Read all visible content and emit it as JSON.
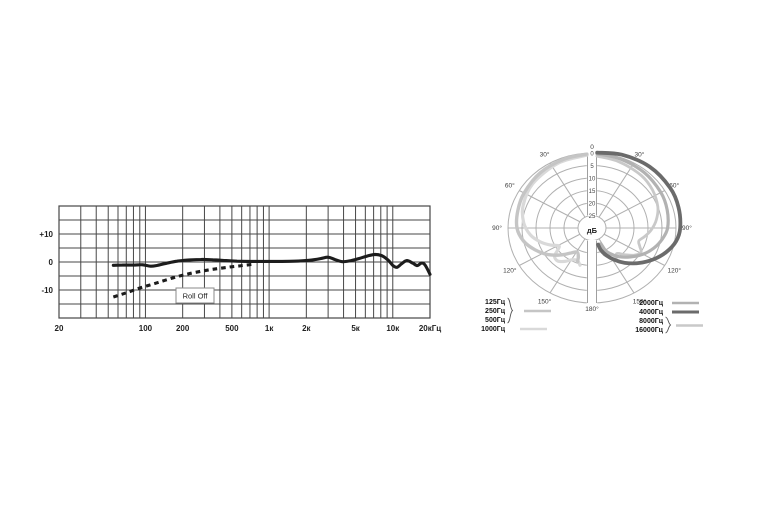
{
  "figure": {
    "background": "#ffffff",
    "colors": {
      "freq_grid": "#474747",
      "freq_curve": "#1c1c1c",
      "polar_grid": "#b0b0b0",
      "channel_line": "#9f9f9f",
      "label_text": "#222222",
      "annotation_border": "#8a8a8a"
    }
  },
  "chart_data": [
    {
      "type": "line",
      "name": "frequency_response",
      "x_scale": "log",
      "x_range": [
        20,
        20000
      ],
      "y_range": [
        -20,
        20
      ],
      "y_grid_step_db": 5,
      "grid": true,
      "x_tick_labels": [
        {
          "value": 20,
          "label": "20"
        },
        {
          "value": 100,
          "label": "100"
        },
        {
          "value": 200,
          "label": "200"
        },
        {
          "value": 500,
          "label": "500"
        },
        {
          "value": 1000,
          "label": "1к"
        },
        {
          "value": 2000,
          "label": "2к"
        },
        {
          "value": 5000,
          "label": "5к"
        },
        {
          "value": 10000,
          "label": "10к"
        },
        {
          "value": 20000,
          "label": "20кГц"
        }
      ],
      "y_tick_labels": [
        {
          "value": 10,
          "label": "+10"
        },
        {
          "value": 0,
          "label": "0"
        },
        {
          "value": -10,
          "label": "-10"
        }
      ],
      "annotation": {
        "label": "Roll Off"
      },
      "series": [
        {
          "name": "main_response",
          "style": "solid",
          "color": "#1c1c1c",
          "width": 3.1,
          "points": [
            [
              55,
              -1.2
            ],
            [
              65,
              -1.1
            ],
            [
              80,
              -1.1
            ],
            [
              95,
              -1.0
            ],
            [
              110,
              -1.5
            ],
            [
              125,
              -1.2
            ],
            [
              150,
              -0.4
            ],
            [
              180,
              0.3
            ],
            [
              220,
              0.7
            ],
            [
              280,
              0.9
            ],
            [
              350,
              0.8
            ],
            [
              450,
              0.5
            ],
            [
              550,
              0.3
            ],
            [
              700,
              0.2
            ],
            [
              900,
              0.2
            ],
            [
              1200,
              0.2
            ],
            [
              1600,
              0.3
            ],
            [
              2100,
              0.6
            ],
            [
              2600,
              1.2
            ],
            [
              3000,
              1.7
            ],
            [
              3400,
              0.9
            ],
            [
              3900,
              0.1
            ],
            [
              4600,
              0.5
            ],
            [
              5300,
              1.2
            ],
            [
              6200,
              2.1
            ],
            [
              7200,
              2.7
            ],
            [
              8200,
              2.2
            ],
            [
              9200,
              0.6
            ],
            [
              10000,
              -1.2
            ],
            [
              10800,
              -1.9
            ],
            [
              11800,
              -0.6
            ],
            [
              13000,
              0.5
            ],
            [
              14500,
              -0.4
            ],
            [
              15800,
              -1.3
            ],
            [
              17000,
              -0.4
            ],
            [
              18200,
              -1.0
            ],
            [
              20000,
              -4.4
            ]
          ]
        },
        {
          "name": "bass_roll_off",
          "style": "dashed",
          "color": "#1c1c1c",
          "width": 3.1,
          "points": [
            [
              55,
              -12.5
            ],
            [
              70,
              -11.0
            ],
            [
              90,
              -9.3
            ],
            [
              115,
              -7.9
            ],
            [
              145,
              -6.5
            ],
            [
              185,
              -5.1
            ],
            [
              235,
              -4.0
            ],
            [
              300,
              -3.1
            ],
            [
              380,
              -2.4
            ],
            [
              480,
              -1.8
            ],
            [
              600,
              -1.3
            ],
            [
              720,
              -0.9
            ]
          ]
        }
      ]
    },
    {
      "type": "polar",
      "name": "polar_pattern",
      "radial_unit": "дБ",
      "radial_ticks": [
        "0",
        "5",
        "10",
        "15",
        "20",
        "25"
      ],
      "radial_db_at_center": 30,
      "angle_labels": {
        "top": "0",
        "sides": [
          "30°",
          "60°",
          "90°",
          "120°",
          "150°"
        ],
        "bottom": "180°"
      },
      "series": [
        {
          "name": "1000Гц",
          "side": "left",
          "color": "#d9d9d9",
          "width": 3.2,
          "points": [
            [
              3.5,
              0.8
            ],
            [
              25,
              1.4
            ],
            [
              50,
              2.4
            ],
            [
              70,
              3.8
            ],
            [
              85,
              5.5
            ],
            [
              97,
              7.8
            ],
            [
              107,
              10.8
            ],
            [
              115,
              13.8
            ],
            [
              121,
              16.2
            ],
            [
              126,
              14.8
            ],
            [
              130,
              12.5
            ],
            [
              137,
              12.0
            ],
            [
              144,
              13.5
            ],
            [
              151,
              15.5
            ],
            [
              158,
              16.0
            ],
            [
              164,
              14.5
            ]
          ]
        },
        {
          "name": "125Гц/250Гц/500Гц",
          "side": "left",
          "color": "#c5c5c5",
          "width": 3.4,
          "points": [
            [
              3.5,
              0.4
            ],
            [
              20,
              0.7
            ],
            [
              40,
              1.2
            ],
            [
              60,
              2.0
            ],
            [
              75,
              2.6
            ],
            [
              90,
              3.2
            ],
            [
              102,
              5.0
            ],
            [
              113,
              7.8
            ],
            [
              124,
              11.0
            ],
            [
              134,
              14.5
            ],
            [
              143,
              17.5
            ],
            [
              151,
              19.0
            ],
            [
              157,
              17.5
            ],
            [
              159,
              15.5
            ]
          ]
        },
        {
          "name": "8000Гц/16000Гц",
          "side": "right",
          "color": "#c9c9c9",
          "width": 2.8,
          "points": [
            [
              3.5,
              1.2
            ],
            [
              20,
              1.8
            ],
            [
              40,
              2.6
            ],
            [
              55,
              3.6
            ],
            [
              70,
              5.0
            ],
            [
              82,
              6.8
            ],
            [
              92,
              8.8
            ],
            [
              100,
              10.8
            ],
            [
              107,
              12.5
            ],
            [
              113,
              11.5
            ],
            [
              119,
              10.0
            ],
            [
              126,
              11.5
            ],
            [
              132,
              14.0
            ],
            [
              139,
              16.5
            ],
            [
              146,
              15.0
            ],
            [
              152,
              16.5
            ],
            [
              158,
              18.5
            ]
          ]
        },
        {
          "name": "2000Гц",
          "side": "right",
          "color": "#b2b2b2",
          "width": 3.2,
          "points": [
            [
              3.5,
              0.3
            ],
            [
              20,
              0.6
            ],
            [
              40,
              1.0
            ],
            [
              60,
              1.6
            ],
            [
              75,
              2.2
            ],
            [
              90,
              3.0
            ],
            [
              100,
              4.5
            ],
            [
              110,
              6.5
            ],
            [
              120,
              9.0
            ],
            [
              130,
              12.0
            ],
            [
              140,
              15.0
            ],
            [
              148,
              18.0
            ],
            [
              153,
              20.5
            ],
            [
              155,
              23.0
            ]
          ]
        },
        {
          "name": "4000Гц",
          "side": "right",
          "color": "#6b6b6b",
          "width": 3.8,
          "points": [
            [
              3.5,
              -0.2
            ],
            [
              20,
              -1.2
            ],
            [
              40,
              -2.0
            ],
            [
              60,
              -2.2
            ],
            [
              75,
              -2.0
            ],
            [
              90,
              -1.5
            ],
            [
              100,
              -0.5
            ],
            [
              110,
              1.8
            ],
            [
              120,
              4.8
            ],
            [
              130,
              8.2
            ],
            [
              140,
              11.8
            ],
            [
              148,
              15.0
            ],
            [
              155,
              18.0
            ],
            [
              160,
              20.5
            ],
            [
              162,
              23.0
            ]
          ]
        }
      ],
      "legend_left": [
        {
          "labels": [
            "125Гц",
            "250Гц",
            "500Гц"
          ],
          "brace": true,
          "swatch": "#c5c5c5"
        },
        {
          "labels": [
            "1000Гц"
          ],
          "brace": false,
          "swatch": "#d9d9d9"
        }
      ],
      "legend_right": [
        {
          "labels": [
            "2000Гц"
          ],
          "brace": false,
          "swatch": "#b2b2b2"
        },
        {
          "labels": [
            "4000Гц"
          ],
          "brace": false,
          "swatch": "#6b6b6b"
        },
        {
          "labels": [
            "8000Гц",
            "16000Гц"
          ],
          "brace": true,
          "swatch": "#c9c9c9"
        }
      ]
    }
  ]
}
